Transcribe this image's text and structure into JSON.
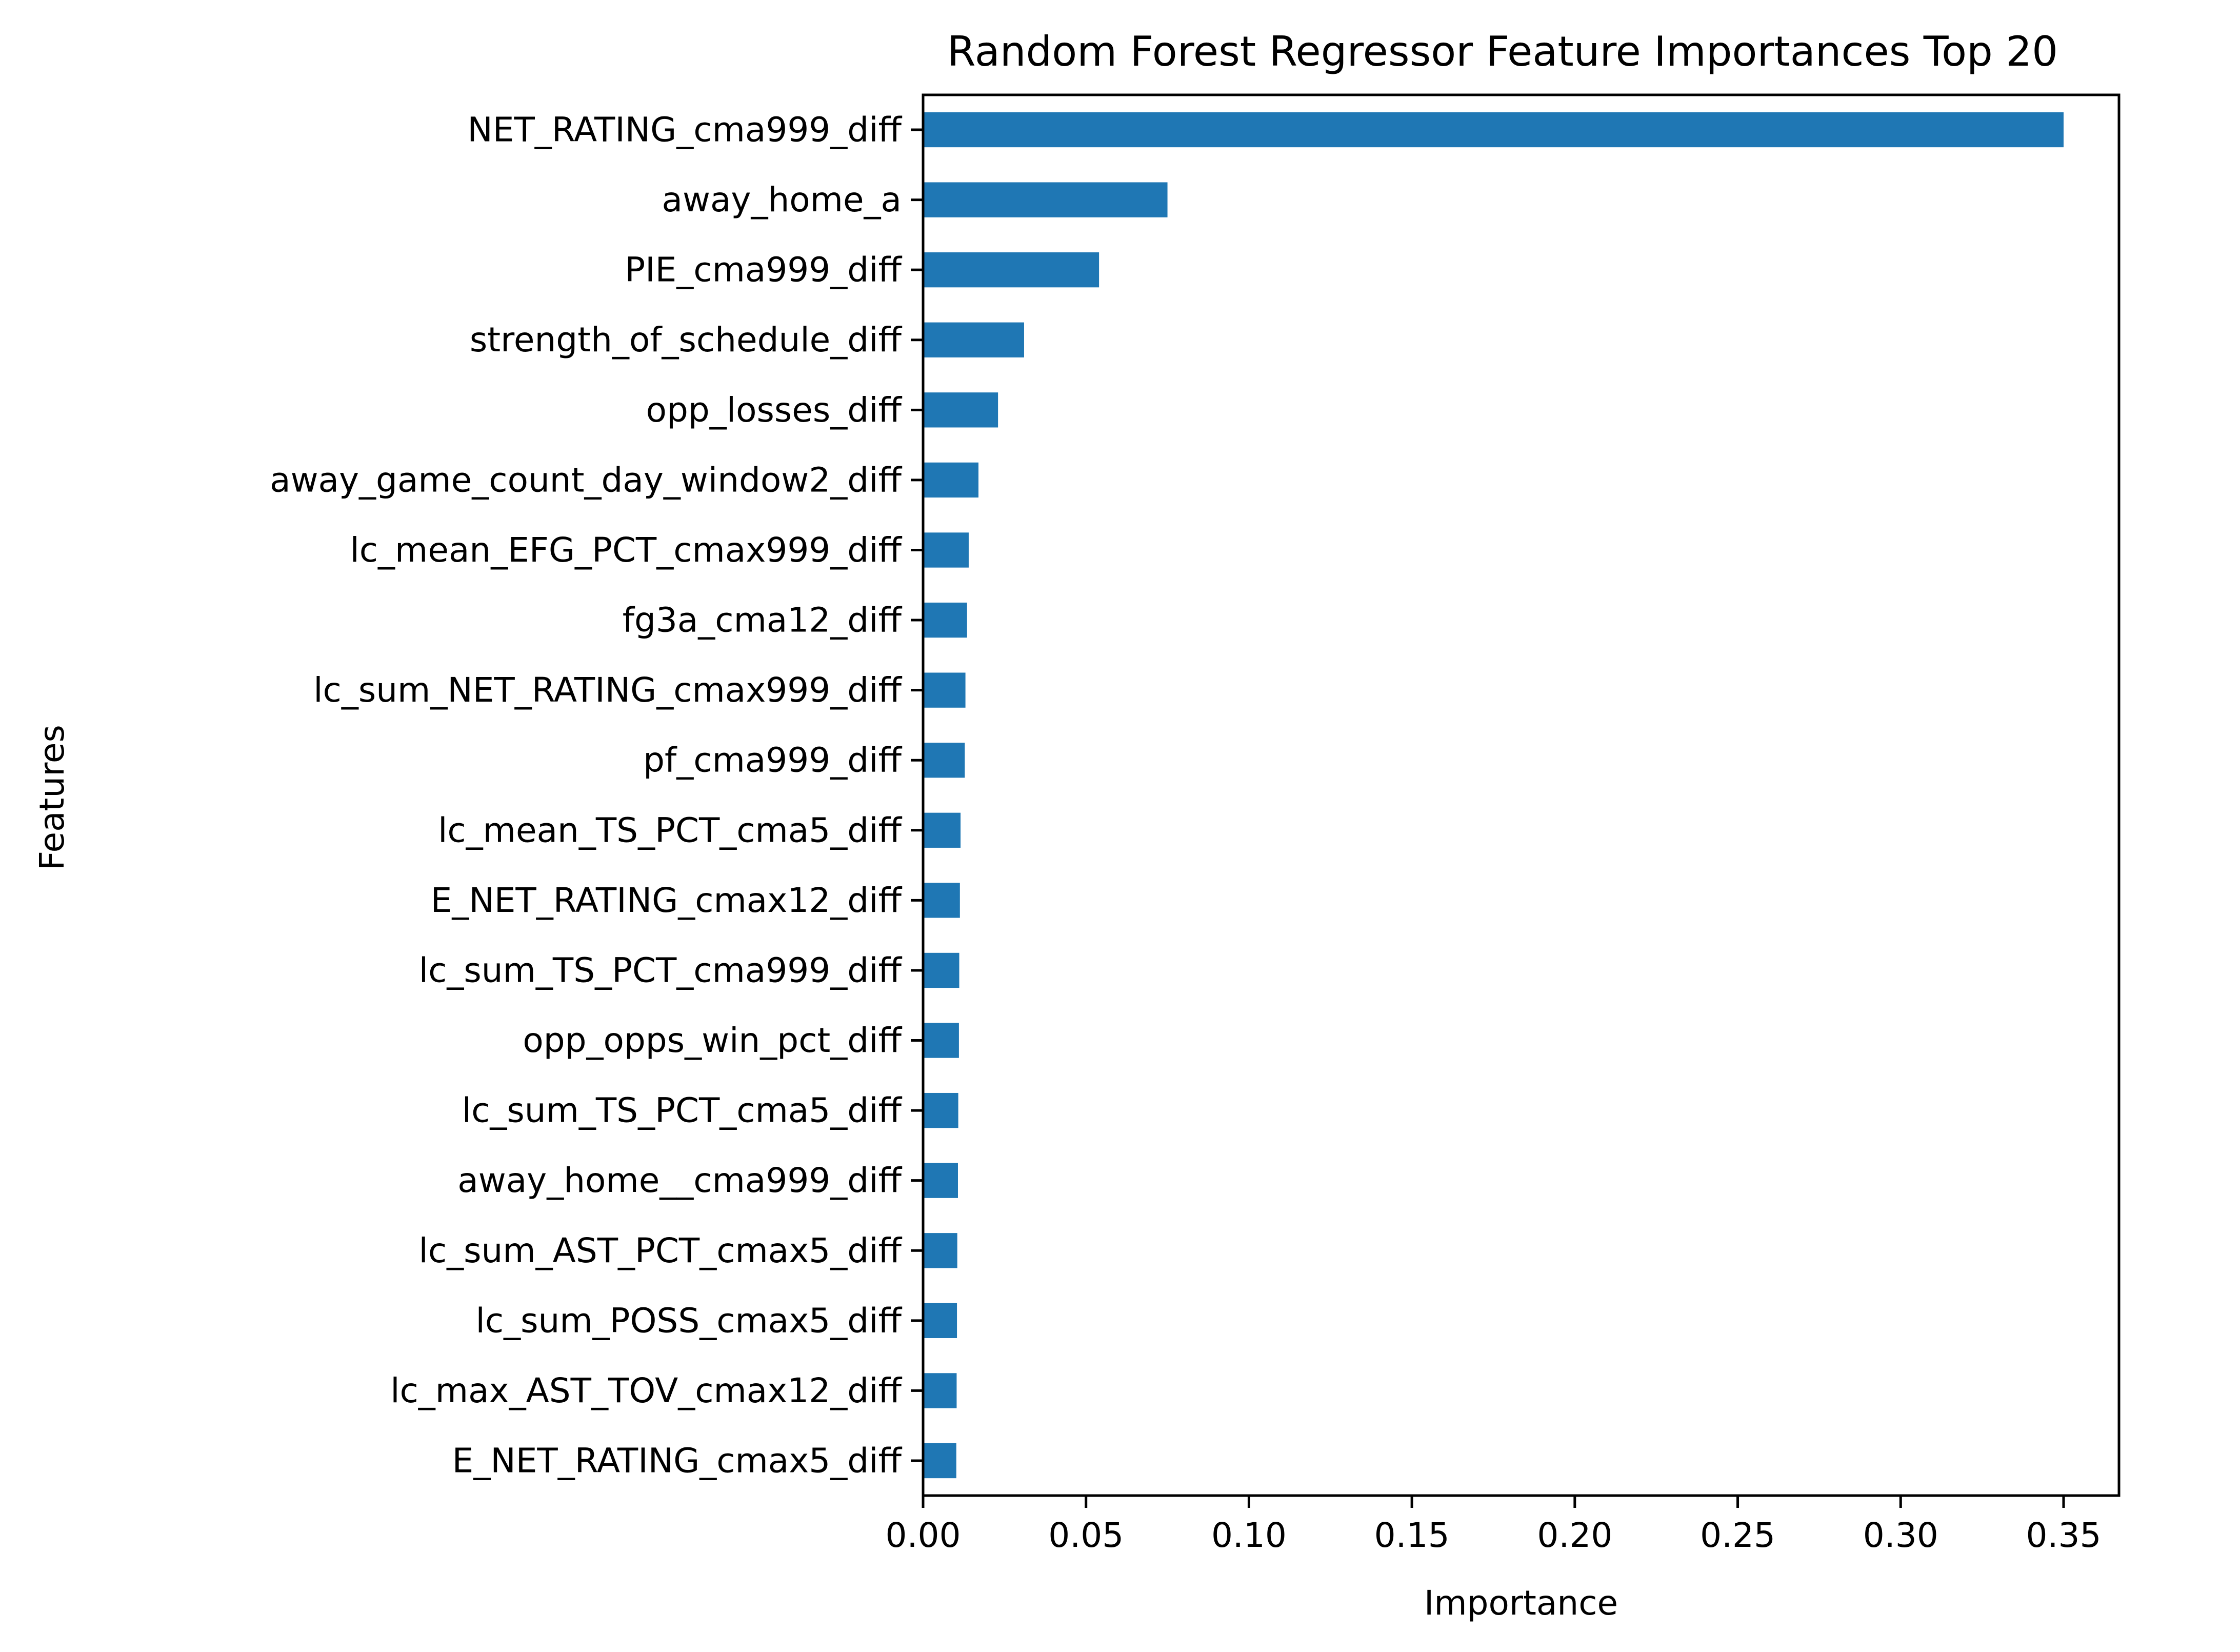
{
  "chart_data": {
    "type": "bar",
    "orientation": "horizontal",
    "title": "Random Forest Regressor Feature Importances Top 20",
    "xlabel": "Importance",
    "ylabel": "Features",
    "xlim": [
      0.0,
      0.367
    ],
    "xticks": [
      0.0,
      0.05,
      0.1,
      0.15,
      0.2,
      0.25,
      0.3,
      0.35
    ],
    "xtick_labels": [
      "0.00",
      "0.05",
      "0.10",
      "0.15",
      "0.20",
      "0.25",
      "0.30",
      "0.35"
    ],
    "grid": false,
    "bar_color": "#1f77b4",
    "categories": [
      "NET_RATING_cma999_diff",
      "away_home_a",
      "PIE_cma999_diff",
      "strength_of_schedule_diff",
      "opp_losses_diff",
      "away_game_count_day_window2_diff",
      "lc_mean_EFG_PCT_cmax999_diff",
      "fg3a_cma12_diff",
      "lc_sum_NET_RATING_cmax999_diff",
      "pf_cma999_diff",
      "lc_mean_TS_PCT_cma5_diff",
      "E_NET_RATING_cmax12_diff",
      "lc_sum_TS_PCT_cma999_diff",
      "opp_opps_win_pct_diff",
      "lc_sum_TS_PCT_cma5_diff",
      "away_home__cma999_diff",
      "lc_sum_AST_PCT_cmax5_diff",
      "lc_sum_POSS_cmax5_diff",
      "lc_max_AST_TOV_cmax12_diff",
      "E_NET_RATING_cmax5_diff"
    ],
    "values": [
      0.35,
      0.075,
      0.054,
      0.031,
      0.023,
      0.017,
      0.014,
      0.0135,
      0.013,
      0.0128,
      0.0115,
      0.0113,
      0.0111,
      0.011,
      0.0108,
      0.0107,
      0.0105,
      0.0104,
      0.0103,
      0.0102
    ]
  }
}
